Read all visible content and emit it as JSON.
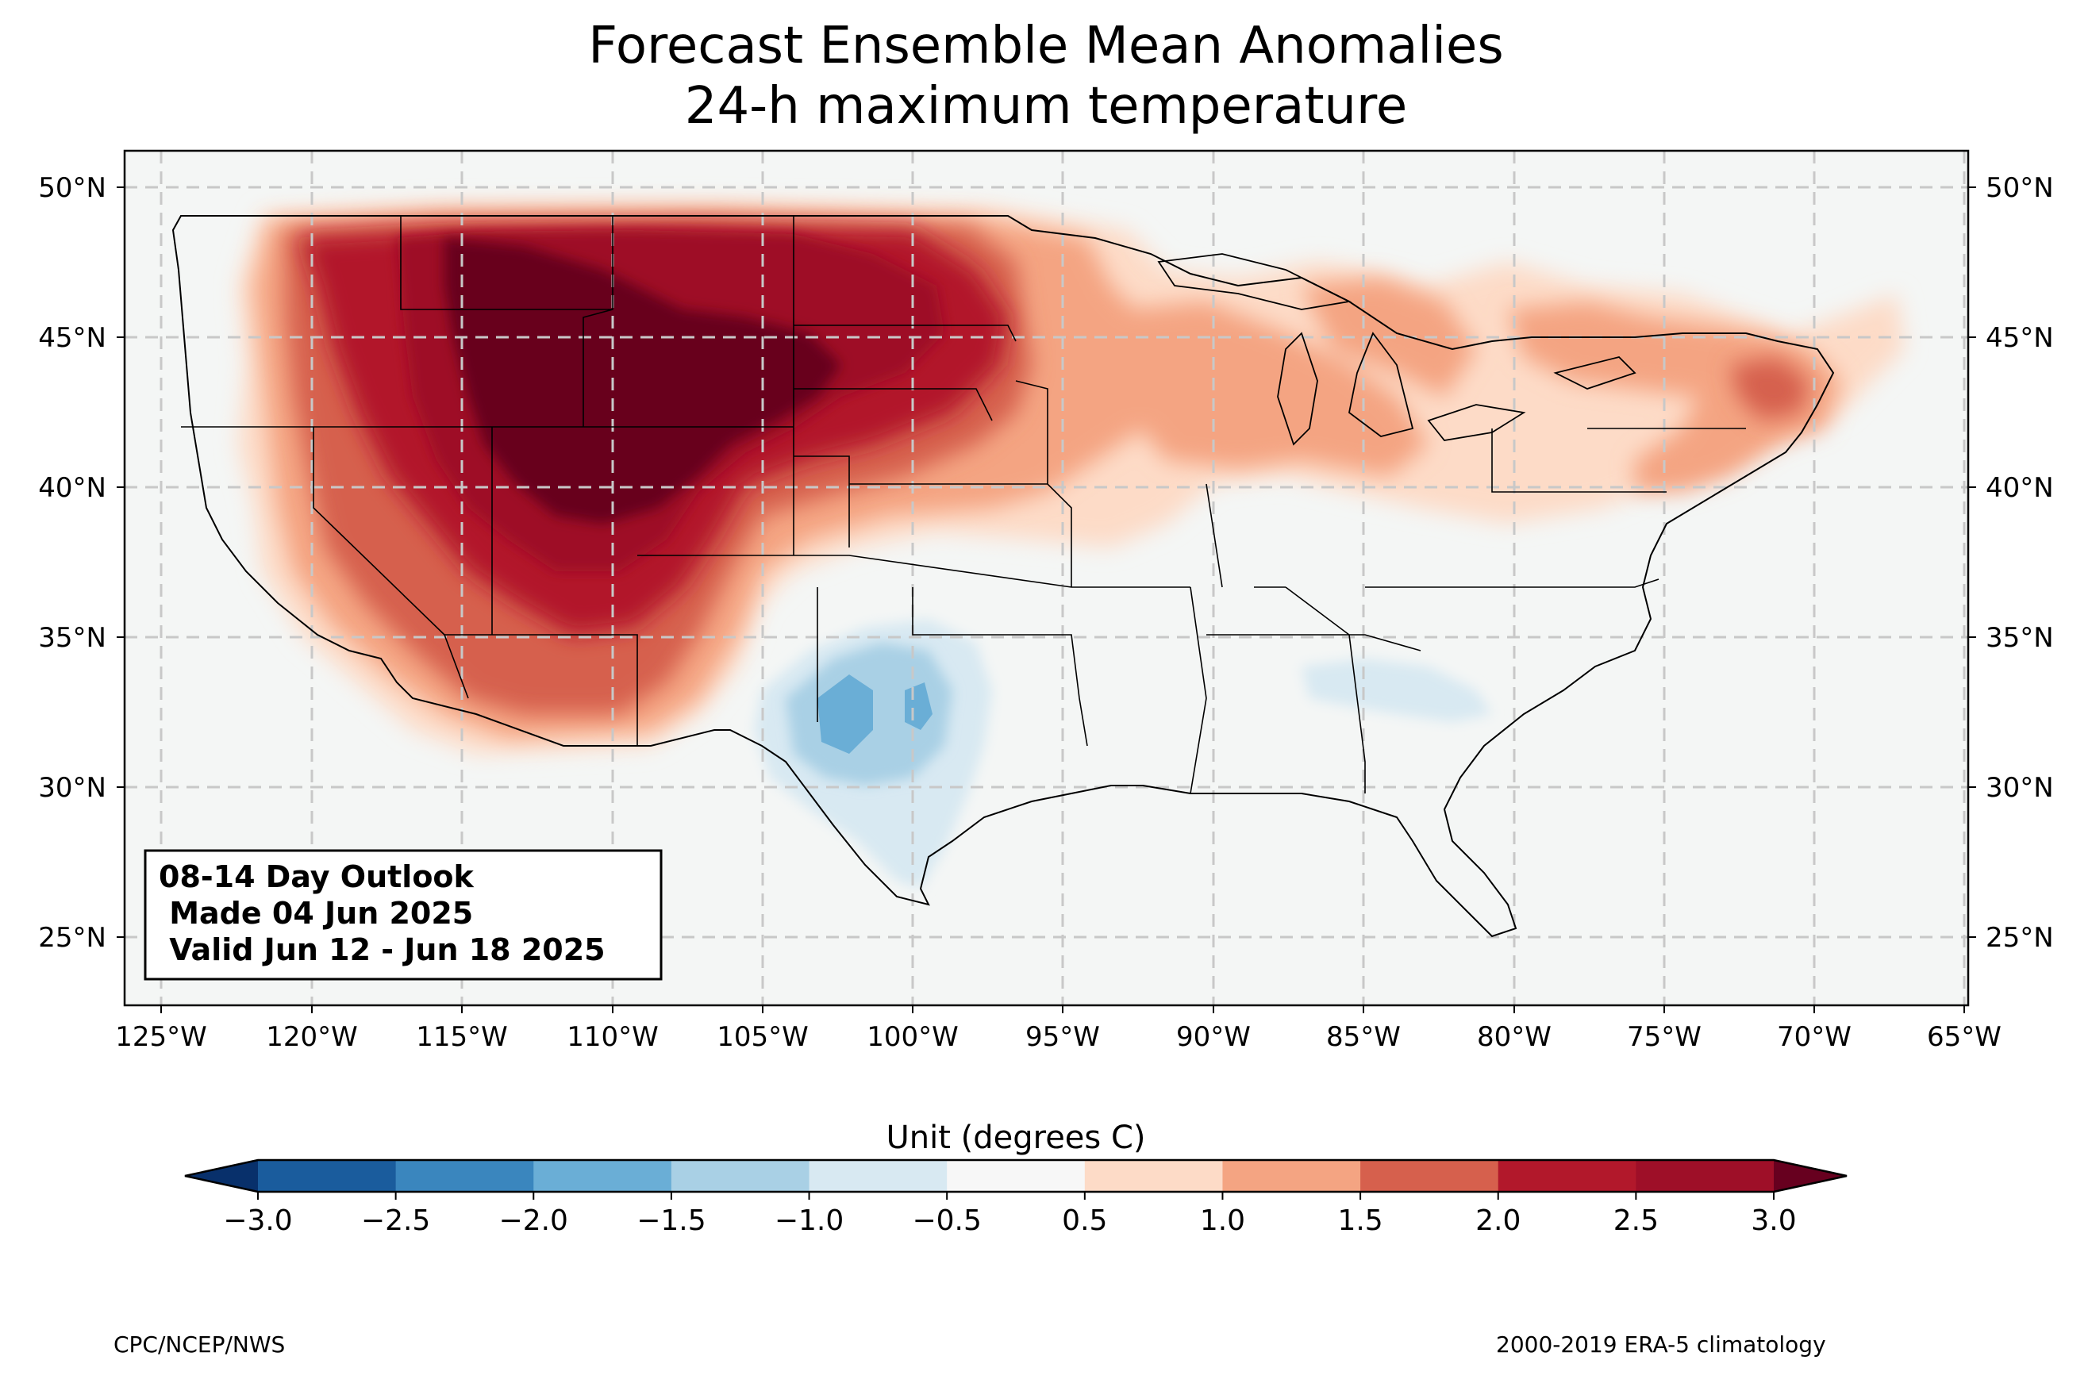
{
  "title": {
    "line1": "Forecast Ensemble Mean Anomalies",
    "line2": "24-h maximum temperature"
  },
  "map": {
    "region": "Contiguous United States",
    "lon_range": [
      -126.2,
      -64.9
    ],
    "lat_range": [
      22.8,
      51.2
    ],
    "gridlines": "dashed",
    "lat_labels": [
      "25°N",
      "30°N",
      "35°N",
      "40°N",
      "45°N",
      "50°N"
    ],
    "lon_labels": [
      "125°W",
      "120°W",
      "115°W",
      "110°W",
      "105°W",
      "100°W",
      "95°W",
      "90°W",
      "85°W",
      "80°W",
      "75°W",
      "70°W",
      "65°W"
    ],
    "ocean_land_color": "#f4f6f5",
    "anomaly_regions": [
      {
        "region": "Northern Rockies / Wyoming / Colorado / Utah",
        "anomaly_c": "≥3.0"
      },
      {
        "region": "Montana, Idaho, Dakotas, Nebraska",
        "anomaly_c": "2.0 to 3.0"
      },
      {
        "region": "Great Basin, Southwest, Central Plains",
        "anomaly_c": "1.0 to 2.0"
      },
      {
        "region": "Upper Midwest, Great Lakes, Northeast",
        "anomaly_c": "0.5 to 1.5"
      },
      {
        "region": "Southern Plains (Texas / Oklahoma)",
        "anomaly_c": "-0.5 to -2.0"
      },
      {
        "region": "Southeast (Georgia / Carolinas)",
        "anomaly_c": "-0.5 to -1.0"
      }
    ]
  },
  "info_box": {
    "line1": "08-14 Day Outlook",
    "line2": " Made 04 Jun 2025",
    "line3": " Valid Jun 12 - Jun 18 2025"
  },
  "colorbar": {
    "title": "Unit (degrees C)",
    "ticks": [
      "−3.0",
      "−2.5",
      "−2.0",
      "−1.5",
      "−1.0",
      "−0.5",
      "0.5",
      "1.0",
      "1.5",
      "2.0",
      "2.5",
      "3.0"
    ],
    "extend": "both",
    "colors": [
      "#08306b",
      "#1a5c9d",
      "#3a86be",
      "#6aaed6",
      "#a9d0e5",
      "#d8e9f2",
      "#f7f7f7",
      "#fddbc7",
      "#f4a482",
      "#d6604d",
      "#b2182b",
      "#9e0f28",
      "#67001f"
    ]
  },
  "footer": {
    "left": "CPC/NCEP/NWS",
    "right": "2000-2019 ERA-5 climatology"
  }
}
